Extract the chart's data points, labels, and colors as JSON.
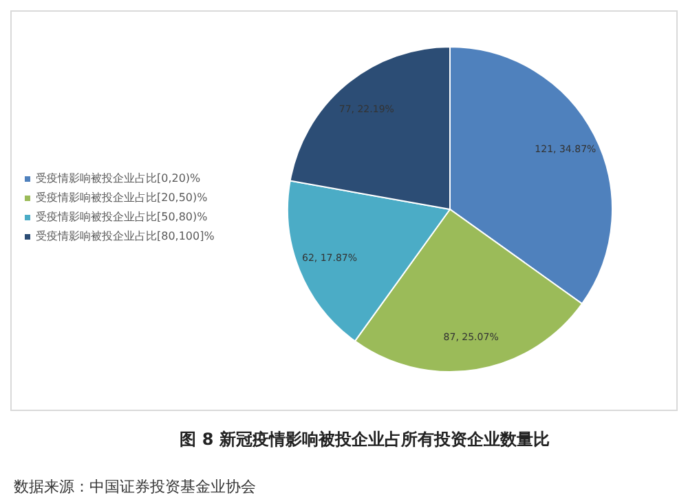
{
  "chart_data": {
    "type": "pie",
    "title": "图 8 新冠疫情影响被投企业占所有投资企业数量比",
    "categories": [
      "受疫情影响被投企业占比[0,20)%",
      "受疫情影响被投企业占比[20,50)%",
      "受疫情影响被投企业占比[50,80)%",
      "受疫情影响被投企业占比[80,100]%"
    ],
    "values": [
      121,
      87,
      62,
      77
    ],
    "colors": [
      "#4f81bd",
      "#9bbb59",
      "#4bacc6",
      "#2c4d75"
    ],
    "value_labels": [
      "121, 34.87%",
      "87, 25.07%",
      "62, 17.87%",
      "77, 22.19%"
    ],
    "legend": "left",
    "annotations": [
      "数据来源：中国证券投资基金业协会"
    ]
  }
}
